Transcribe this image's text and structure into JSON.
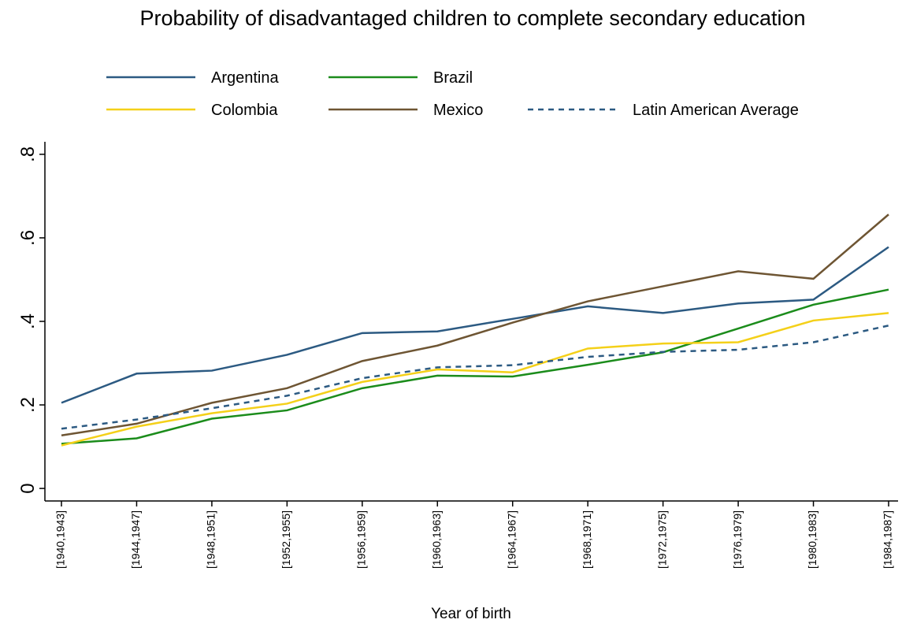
{
  "chart_data": {
    "type": "line",
    "title": "Probability of disadvantaged children to complete secondary education",
    "x_label": "Year of birth",
    "categories": [
      "[1940,1943]",
      "[1944,1947]",
      "[1948,1951]",
      "[1952,1955]",
      "[1956,1959]",
      "[1960,1963]",
      "[1964,1967]",
      "[1968,1971]",
      "[1972,1975]",
      "[1976,1979]",
      "[1980,1983]",
      "[1984,1987]"
    ],
    "series": [
      {
        "name": "Argentina",
        "color": "#2c5a82",
        "values": [
          0.205,
          0.275,
          0.282,
          0.32,
          0.372,
          0.376,
          0.406,
          0.436,
          0.42,
          0.443,
          0.452,
          0.578
        ]
      },
      {
        "name": "Brazil",
        "color": "#1b8c1b",
        "values": [
          0.107,
          0.12,
          0.167,
          0.187,
          0.24,
          0.27,
          0.268,
          0.296,
          0.326,
          0.383,
          0.44,
          0.476
        ]
      },
      {
        "name": "Colombia",
        "color": "#f4d019",
        "values": [
          0.103,
          0.148,
          0.18,
          0.203,
          0.255,
          0.285,
          0.278,
          0.335,
          0.347,
          0.35,
          0.402,
          0.42
        ]
      },
      {
        "name": "Mexico",
        "color": "#6e5533",
        "values": [
          0.127,
          0.155,
          0.205,
          0.24,
          0.305,
          0.342,
          0.397,
          0.448,
          0.484,
          0.52,
          0.502,
          0.656
        ]
      },
      {
        "name": "Latin American Average",
        "color": "#2c5a82",
        "dashed": true,
        "values": [
          0.143,
          0.165,
          0.192,
          0.222,
          0.264,
          0.29,
          0.295,
          0.315,
          0.327,
          0.332,
          0.35,
          0.39
        ]
      }
    ],
    "ylim": [
      -0.03,
      0.83
    ],
    "yticks": [
      0,
      {
        "value": 0.2,
        "label": ".2"
      },
      {
        "value": 0.4,
        "label": ".4"
      },
      {
        "value": 0.6,
        "label": ".6"
      },
      {
        "value": 0.8,
        "label": ".8"
      }
    ],
    "grid": false
  }
}
